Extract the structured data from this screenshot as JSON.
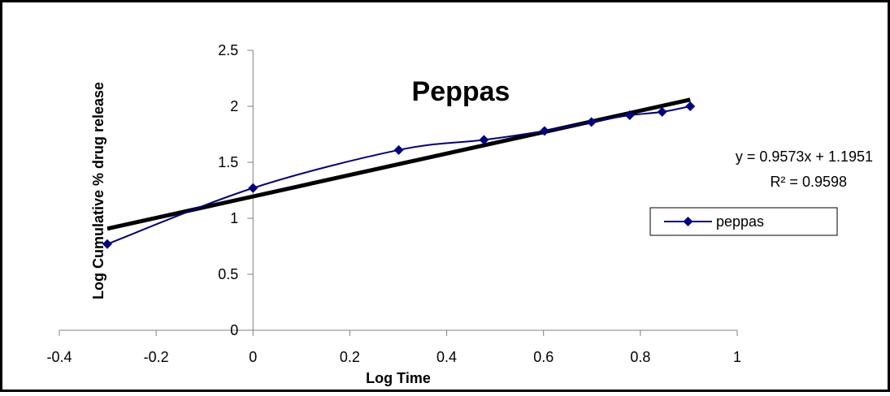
{
  "chart_data": {
    "type": "scatter",
    "title": "Peppas",
    "xlabel": "Log Time",
    "ylabel": "Log Cumulative % drug release",
    "xlim": [
      -0.4,
      1
    ],
    "ylim": [
      0,
      2.5
    ],
    "x_ticks": [
      "-0.4",
      "-0.2",
      "0",
      "0.2",
      "0.4",
      "0.6",
      "0.8",
      "1"
    ],
    "y_ticks": [
      "0",
      "0.5",
      "1",
      "1.5",
      "2",
      "2.5"
    ],
    "grid": false,
    "legend_position": "right",
    "series": [
      {
        "name": "peppas",
        "color": "#000080",
        "marker": "diamond",
        "line": "smooth",
        "x": [
          -0.301,
          0.0,
          0.301,
          0.477,
          0.602,
          0.699,
          0.778,
          0.845,
          0.903
        ],
        "y": [
          0.77,
          1.27,
          1.61,
          1.7,
          1.78,
          1.86,
          1.92,
          1.95,
          2.0
        ]
      }
    ],
    "trendline": {
      "color": "#000000",
      "slope": 0.9573,
      "intercept": 1.1951,
      "x_range": [
        -0.301,
        0.903
      ],
      "equation": "y = 0.9573x + 1.1951",
      "r_squared": "R² = 0.9598"
    }
  }
}
